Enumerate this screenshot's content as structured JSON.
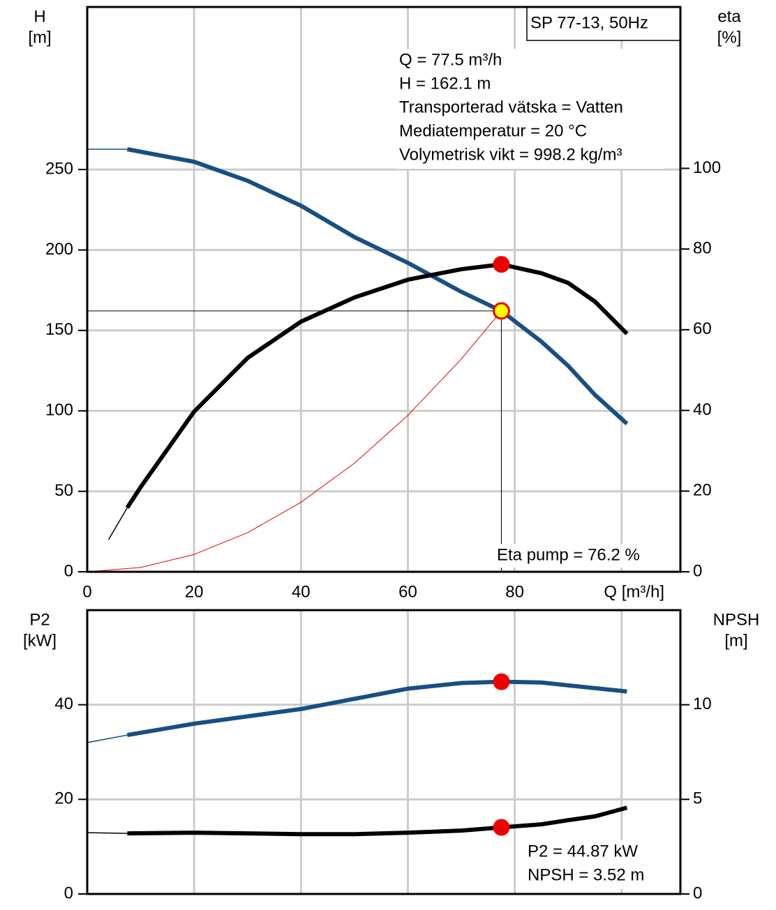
{
  "chart_data": [
    {
      "type": "line",
      "y_label": "H",
      "y_unit": "[m]",
      "y2_label": "eta",
      "y2_unit": "[%]",
      "title": "SP 77-13, 50Hz",
      "info": [
        "Q = 77.5 m³/h",
        "H = 162.1 m",
        "Transporterad vätska = Vatten",
        "Mediatemperatur = 20 °C",
        "Volymetrisk vikt = 998.2 kg/m³"
      ],
      "annotation": "Eta pump = 76.2 %",
      "xlim": [
        0,
        111
      ],
      "xticks": [
        0,
        20,
        40,
        60,
        80,
        {
          "value": 100,
          "label": "Q [m³/h]"
        }
      ],
      "ylim": [
        0,
        351
      ],
      "yticks": [
        0,
        50,
        100,
        150,
        200,
        250
      ],
      "y2lim": [
        0,
        140
      ],
      "y2ticks": [
        0,
        20,
        40,
        60,
        80,
        100
      ],
      "grid": true,
      "series": [
        {
          "color": "#184f82",
          "style": "thick",
          "x": [
            0,
            7.5,
            20,
            30,
            40,
            50,
            60,
            70,
            77.5,
            85,
            90,
            95,
            101
          ],
          "values": [
            262.6,
            262.6,
            254.8,
            243,
            227.5,
            208,
            192,
            174,
            162.1,
            143,
            128,
            110,
            92
          ]
        },
        {
          "color": "#000000",
          "style": "thick",
          "axis": "y2",
          "x": [
            4,
            7.5,
            10,
            20,
            30,
            40,
            50,
            60,
            70,
            77.5,
            85,
            90,
            95,
            101
          ],
          "values": [
            8,
            15.9,
            21,
            39.7,
            53,
            62,
            68,
            72.4,
            75,
            76.2,
            74,
            71.6,
            67,
            59
          ]
        },
        {
          "color": "#e00000",
          "style": "thin",
          "x": [
            0,
            10,
            20,
            30,
            40,
            50,
            60,
            70,
            77.5
          ],
          "values": [
            0,
            2.7,
            10.8,
            24.3,
            43.2,
            67.5,
            97.2,
            132.2,
            162.1
          ]
        }
      ],
      "operating_point": {
        "x": 77.5,
        "y": 162.1,
        "y2": 76.2
      }
    },
    {
      "type": "line",
      "y_label": "P2",
      "y_unit": "[kW]",
      "y2_label": "NPSH",
      "y2_unit": "[m]",
      "info": [
        "P2 = 44.87 kW",
        "NPSH = 3.52 m"
      ],
      "xlim": [
        0,
        111
      ],
      "xgrid": [
        20,
        40,
        60,
        80,
        100
      ],
      "ylim": [
        0,
        60
      ],
      "yticks": [
        0,
        20,
        40
      ],
      "y2lim": [
        0,
        15
      ],
      "y2ticks": [
        0,
        5,
        10
      ],
      "grid": true,
      "series": [
        {
          "color": "#184f82",
          "style": "thick",
          "x": [
            0,
            7.5,
            20,
            40,
            60,
            70,
            77.5,
            85,
            90,
            101
          ],
          "values": [
            32,
            33.6,
            36,
            39.1,
            43.4,
            44.6,
            44.87,
            44.7,
            44.1,
            42.8
          ]
        },
        {
          "color": "#000000",
          "style": "thick",
          "axis": "y2",
          "x": [
            0,
            7.5,
            20,
            40,
            50,
            60,
            70,
            77.5,
            85,
            90,
            95,
            101
          ],
          "values": [
            3.24,
            3.2,
            3.24,
            3.16,
            3.16,
            3.24,
            3.35,
            3.52,
            3.68,
            3.9,
            4.1,
            4.56
          ]
        }
      ],
      "operating_point": {
        "x": 77.5,
        "y": 44.87,
        "y2": 3.52
      }
    }
  ]
}
